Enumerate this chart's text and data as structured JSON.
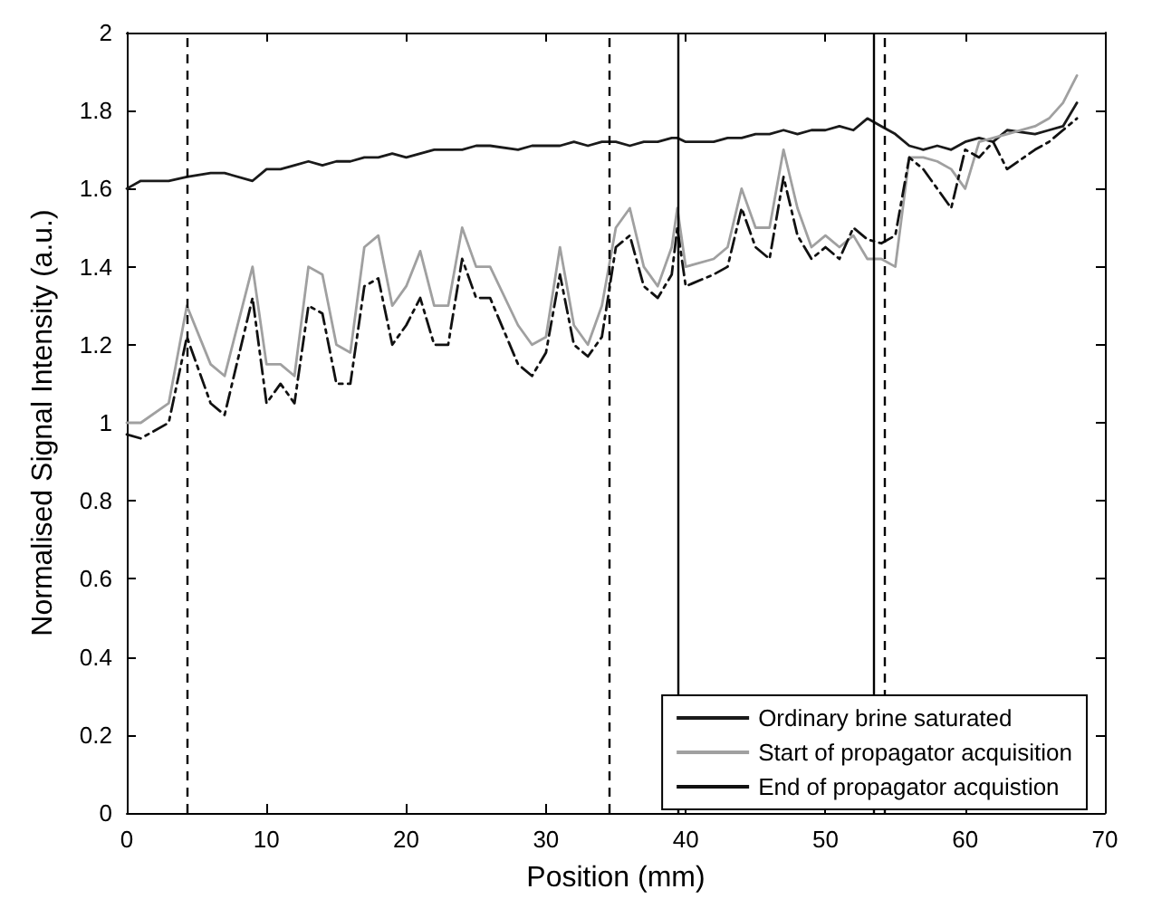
{
  "chart_data": {
    "type": "line",
    "xlabel": "Position (mm)",
    "ylabel": "Normalised Signal Intensity (a.u.)",
    "x": [
      0,
      1,
      3,
      4.3,
      6,
      7,
      9,
      10,
      11,
      12,
      13,
      14,
      15,
      16,
      17,
      18,
      19,
      20,
      21,
      22,
      23,
      24,
      25,
      26,
      28,
      29,
      30,
      31,
      32,
      33,
      34,
      35,
      36,
      37,
      38,
      39,
      39.4,
      40,
      42,
      43,
      44,
      45,
      46,
      47,
      48,
      49,
      50,
      51,
      52,
      53,
      54,
      55,
      56,
      57,
      58,
      59,
      60,
      61,
      62,
      63,
      65,
      66,
      67,
      68
    ],
    "series": [
      {
        "name": "Ordinary brine saturated",
        "color": "#1a1a1a",
        "line_style": "solid",
        "values": [
          1.6,
          1.62,
          1.62,
          1.63,
          1.64,
          1.64,
          1.62,
          1.65,
          1.65,
          1.66,
          1.67,
          1.66,
          1.67,
          1.67,
          1.68,
          1.68,
          1.69,
          1.68,
          1.69,
          1.7,
          1.7,
          1.7,
          1.71,
          1.71,
          1.7,
          1.71,
          1.71,
          1.71,
          1.72,
          1.71,
          1.72,
          1.72,
          1.71,
          1.72,
          1.72,
          1.73,
          1.73,
          1.72,
          1.72,
          1.73,
          1.73,
          1.74,
          1.74,
          1.75,
          1.74,
          1.75,
          1.75,
          1.76,
          1.75,
          1.78,
          1.76,
          1.74,
          1.71,
          1.7,
          1.71,
          1.7,
          1.72,
          1.73,
          1.72,
          1.75,
          1.74,
          1.75,
          1.76,
          1.82
        ]
      },
      {
        "name": "Start of propagator acquisition",
        "color": "#a0a0a0",
        "line_style": "solid",
        "values": [
          1.0,
          1.0,
          1.05,
          1.3,
          1.15,
          1.12,
          1.4,
          1.15,
          1.15,
          1.12,
          1.4,
          1.38,
          1.2,
          1.18,
          1.45,
          1.48,
          1.3,
          1.35,
          1.44,
          1.3,
          1.3,
          1.5,
          1.4,
          1.4,
          1.25,
          1.2,
          1.22,
          1.45,
          1.25,
          1.2,
          1.3,
          1.5,
          1.55,
          1.4,
          1.35,
          1.45,
          1.55,
          1.4,
          1.42,
          1.45,
          1.6,
          1.5,
          1.5,
          1.7,
          1.55,
          1.45,
          1.48,
          1.45,
          1.48,
          1.42,
          1.42,
          1.4,
          1.68,
          1.68,
          1.67,
          1.65,
          1.6,
          1.72,
          1.73,
          1.74,
          1.76,
          1.78,
          1.82,
          1.89
        ]
      },
      {
        "name": "End of propagator acquistion",
        "color": "#111111",
        "line_style": "dashed",
        "values": [
          0.97,
          0.96,
          1.0,
          1.22,
          1.05,
          1.02,
          1.32,
          1.05,
          1.1,
          1.05,
          1.3,
          1.28,
          1.1,
          1.1,
          1.35,
          1.37,
          1.2,
          1.25,
          1.32,
          1.2,
          1.2,
          1.42,
          1.32,
          1.32,
          1.15,
          1.12,
          1.18,
          1.38,
          1.2,
          1.17,
          1.22,
          1.45,
          1.48,
          1.35,
          1.32,
          1.38,
          1.5,
          1.35,
          1.38,
          1.4,
          1.55,
          1.45,
          1.42,
          1.63,
          1.48,
          1.42,
          1.45,
          1.42,
          1.5,
          1.47,
          1.46,
          1.48,
          1.68,
          1.65,
          1.6,
          1.55,
          1.7,
          1.68,
          1.72,
          1.65,
          1.7,
          1.72,
          1.75,
          1.78
        ]
      }
    ],
    "ref_lines": [
      {
        "axis": "x",
        "value": 4.3,
        "color": "#000000",
        "line_style": "dashed"
      },
      {
        "axis": "x",
        "value": 34.5,
        "color": "#000000",
        "line_style": "dashed"
      },
      {
        "axis": "x",
        "value": 39.4,
        "color": "#000000",
        "line_style": "solid"
      },
      {
        "axis": "x",
        "value": 53.4,
        "color": "#000000",
        "line_style": "solid"
      },
      {
        "axis": "x",
        "value": 54.2,
        "color": "#000000",
        "line_style": "dashed"
      }
    ],
    "xlim": [
      0,
      70
    ],
    "xticks": [
      0,
      10,
      20,
      30,
      40,
      50,
      60,
      70
    ],
    "ylim": [
      0,
      2
    ],
    "yticks": [
      0,
      0.2,
      0.4,
      0.6,
      0.8,
      1,
      1.2,
      1.4,
      1.6,
      1.8,
      2
    ],
    "grid": false,
    "legend": "bottom right",
    "marker": "none"
  }
}
